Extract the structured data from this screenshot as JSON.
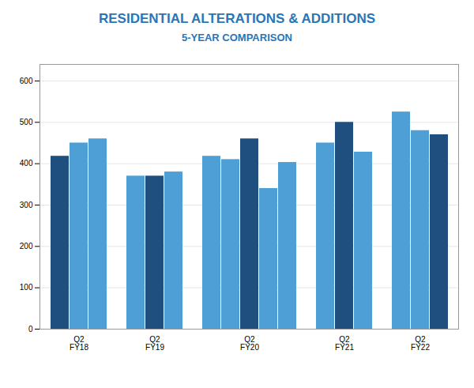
{
  "chart_data": {
    "type": "bar",
    "title": "RESIDENTIAL ALTERATIONS & ADDITIONS",
    "subtitle": "5-YEAR COMPARISON",
    "categories": [
      "Q2\nFY18",
      "Q2\nFY19",
      "Q2\nFY20",
      "Q2\nFY21",
      "Q2\nFY22"
    ],
    "values": [
      [
        418,
        450,
        460
      ],
      [
        370,
        370,
        380
      ],
      [
        418,
        410,
        460,
        340,
        403
      ],
      [
        450,
        500,
        428
      ],
      [
        525,
        480,
        470
      ]
    ],
    "colors": [
      [
        "#1f4f7f",
        "#4d9fd6",
        "#4d9fd6"
      ],
      [
        "#4d9fd6",
        "#1f4f7f",
        "#4d9fd6"
      ],
      [
        "#4d9fd6",
        "#4d9fd6",
        "#1f4f7f",
        "#4d9fd6",
        "#4d9fd6"
      ],
      [
        "#4d9fd6",
        "#1f4f7f",
        "#4d9fd6"
      ],
      [
        "#4d9fd6",
        "#4d9fd6",
        "#1f4f7f"
      ]
    ],
    "ylim": [
      0,
      640
    ],
    "yticks": [
      0,
      100,
      200,
      300,
      400,
      500,
      600
    ],
    "grid": true
  }
}
